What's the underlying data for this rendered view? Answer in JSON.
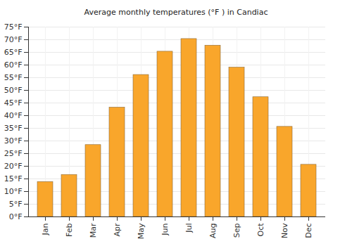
{
  "chart_data": {
    "type": "bar",
    "title": "Average monthly temperatures (°F ) in Candiac",
    "categories": [
      "Jan",
      "Feb",
      "Mar",
      "Apr",
      "May",
      "Jun",
      "Jul",
      "Aug",
      "Sep",
      "Oct",
      "Nov",
      "Dec"
    ],
    "values": [
      13.8,
      16.6,
      28.4,
      43.2,
      56.1,
      65.3,
      70.3,
      67.7,
      59.0,
      47.3,
      35.6,
      20.6
    ],
    "color": "#f9a62b",
    "ylim": [
      0,
      75
    ],
    "yticks": [
      {
        "value": 0,
        "label": "0°F"
      },
      {
        "value": 5,
        "label": "5°F"
      },
      {
        "value": 10,
        "label": "10°F"
      },
      {
        "value": 15,
        "label": "15°F"
      },
      {
        "value": 20,
        "label": "20°F"
      },
      {
        "value": 25,
        "label": "25°F"
      },
      {
        "value": 30,
        "label": "30°F"
      },
      {
        "value": 35,
        "label": "35°F"
      },
      {
        "value": 40,
        "label": "40°F"
      },
      {
        "value": 45,
        "label": "45°F"
      },
      {
        "value": 50,
        "label": "50°F"
      },
      {
        "value": 55,
        "label": "55°F"
      },
      {
        "value": 60,
        "label": "60°F"
      },
      {
        "value": 65,
        "label": "65°F"
      },
      {
        "value": 70,
        "label": "70°F"
      },
      {
        "value": 75,
        "label": "75°F"
      }
    ],
    "grid": true
  }
}
